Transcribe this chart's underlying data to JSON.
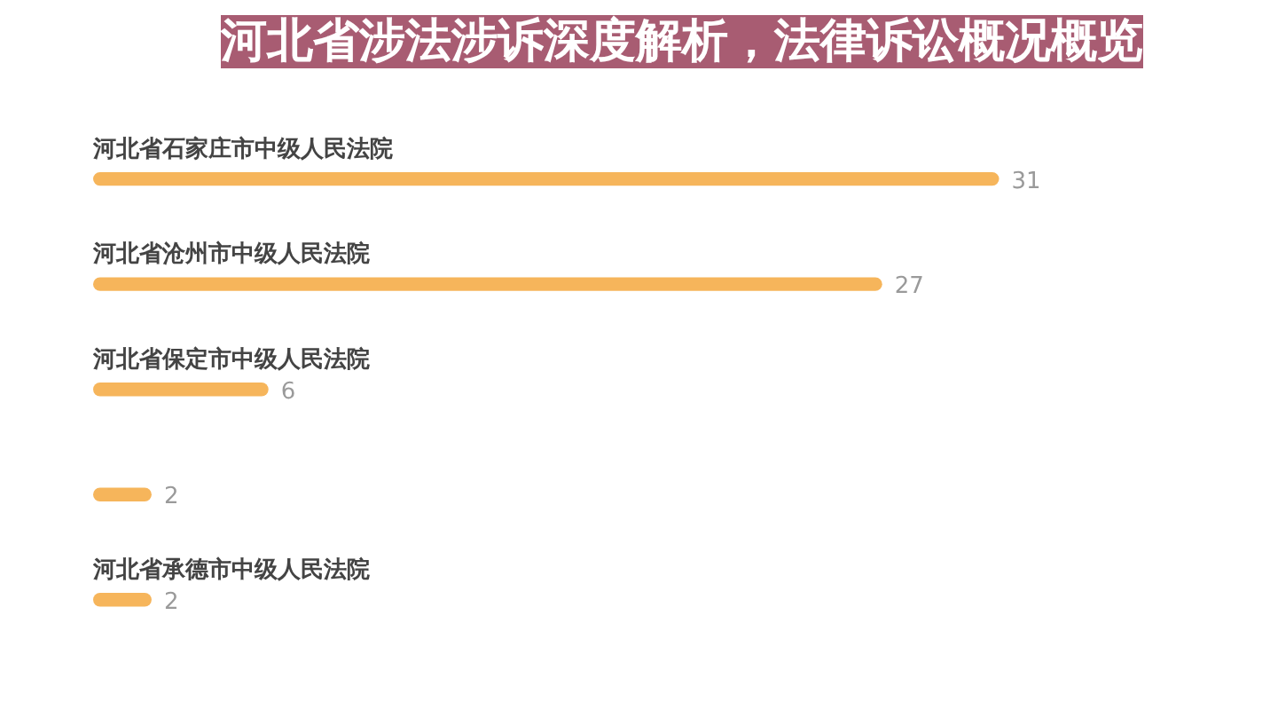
{
  "chart_data": {
    "type": "bar",
    "orientation": "horizontal",
    "title": "河北省涉法涉诉深度解析，法律诉讼概况概览",
    "categories": [
      "河北省石家庄市中级人民法院",
      "河北省沧州市中级人民法院",
      "河北省保定市中级人民法院",
      null,
      "河北省承德市中级人民法院"
    ],
    "values": [
      31,
      27,
      6,
      2,
      2
    ],
    "color": "#f6b55b",
    "data_labels": true
  }
}
